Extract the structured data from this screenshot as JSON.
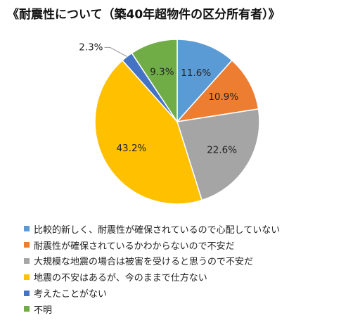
{
  "chart_data": {
    "type": "pie",
    "title": "《耐震性について（築40年超物件の区分所有者）》",
    "slices": [
      {
        "label": "比較的新しく、耐震性が確保されているので心配していない",
        "value": 11.6,
        "display": "11.6%",
        "color": "#5b9bd5"
      },
      {
        "label": "耐震性が確保されているかわからないので不安だ",
        "value": 10.9,
        "display": "10.9%",
        "color": "#ed7d31"
      },
      {
        "label": "大規模な地震の場合は被害を受けると思うので不安だ",
        "value": 22.6,
        "display": "22.6%",
        "color": "#a5a5a5"
      },
      {
        "label": "地震の不安はあるが、今のままで仕方ない",
        "value": 43.2,
        "display": "43.2%",
        "color": "#ffc000"
      },
      {
        "label": "考えたことがない",
        "value": 2.3,
        "display": "2.3%",
        "color": "#4472c4"
      },
      {
        "label": "不明",
        "value": 9.3,
        "display": "9.3%",
        "color": "#70ad47"
      }
    ],
    "legend_position": "bottom"
  }
}
